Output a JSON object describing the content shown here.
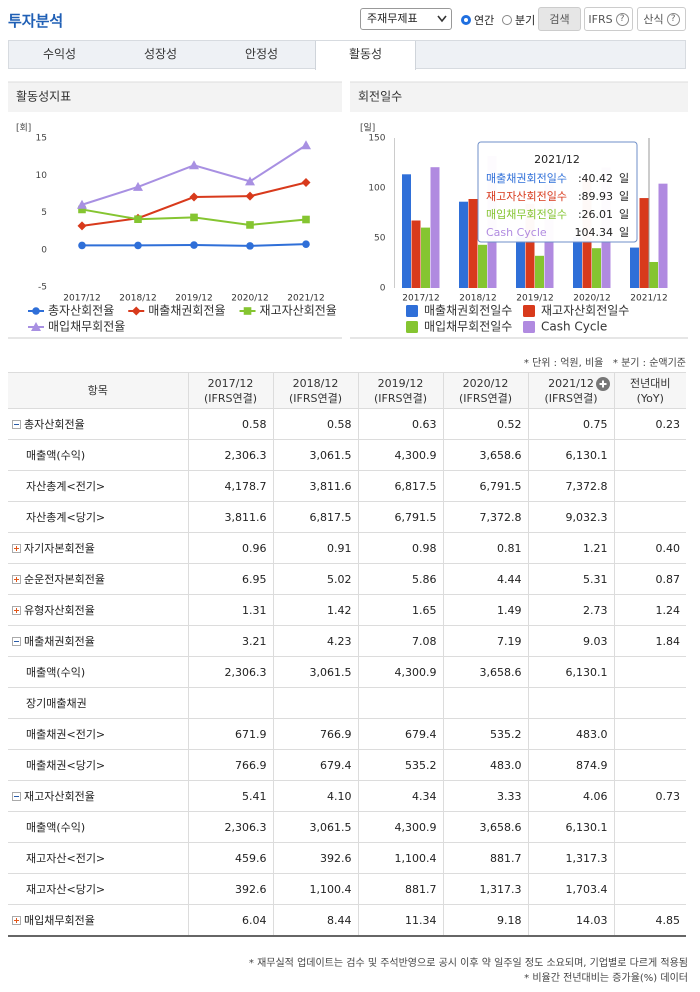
{
  "header": {
    "title": "투자분석",
    "select": "주재무제표",
    "radio": [
      "연간",
      "분기"
    ],
    "radio_checked": 0,
    "buttons": [
      "검색",
      "IFRS",
      "산식"
    ],
    "help_icon": "?"
  },
  "tabs": [
    "수익성",
    "성장성",
    "안정성",
    "활동성"
  ],
  "active_tab": 3,
  "chart_data": [
    {
      "type": "line",
      "title": "활동성지표",
      "y_unit": "[회]",
      "categories": [
        "2017/12",
        "2018/12",
        "2019/12",
        "2020/12",
        "2021/12"
      ],
      "series": [
        {
          "name": "총자산회전율",
          "color": "#2f6fd8",
          "marker": "circle",
          "values": [
            0.58,
            0.58,
            0.63,
            0.52,
            0.75
          ]
        },
        {
          "name": "매출채권회전율",
          "color": "#d83a1c",
          "marker": "diamond",
          "values": [
            3.21,
            4.23,
            7.08,
            7.19,
            9.03
          ]
        },
        {
          "name": "재고자산회전율",
          "color": "#85c531",
          "marker": "square",
          "values": [
            5.41,
            4.1,
            4.34,
            3.33,
            4.06
          ]
        },
        {
          "name": "매입채무회전율",
          "color": "#a890e2",
          "marker": "triangle",
          "values": [
            6.04,
            8.44,
            11.34,
            9.18,
            14.03
          ]
        }
      ],
      "ylim": [
        -5,
        15
      ],
      "yticks": [
        -5,
        0,
        5,
        10,
        15
      ],
      "grid": false
    },
    {
      "type": "bar",
      "title": "회전일수",
      "y_unit": "[일]",
      "categories": [
        "2017/12",
        "2018/12",
        "2019/12",
        "2020/12",
        "2021/12"
      ],
      "series": [
        {
          "name": "매출채권회전일수",
          "color": "#2f6fd8",
          "values": [
            113.7,
            86.3,
            51.6,
            50.8,
            40.42
          ]
        },
        {
          "name": "재고자산회전일수",
          "color": "#d83a1c",
          "values": [
            67.5,
            89.0,
            84.1,
            109.6,
            89.93
          ]
        },
        {
          "name": "매입채무회전일수",
          "color": "#85c531",
          "values": [
            60.4,
            43.2,
            32.2,
            39.8,
            26.01
          ]
        },
        {
          "name": "Cash Cycle",
          "color": "#b08ae0",
          "values": [
            120.8,
            132.1,
            103.5,
            120.6,
            104.34
          ]
        }
      ],
      "ylim": [
        0,
        150
      ],
      "yticks": [
        0,
        50,
        100,
        150
      ],
      "grid": false,
      "tooltip_separator": ":",
      "tooltip_unit": "일"
    }
  ],
  "note": "* 단위 : 억원, 비율   * 분기 : 순액기준",
  "table": {
    "columns": [
      {
        "label": "항목"
      },
      {
        "label": "2017/12",
        "sub": "(IFRS연결)"
      },
      {
        "label": "2018/12",
        "sub": "(IFRS연결)"
      },
      {
        "label": "2019/12",
        "sub": "(IFRS연결)"
      },
      {
        "label": "2020/12",
        "sub": "(IFRS연결)"
      },
      {
        "label": "2021/12",
        "sub": "(IFRS연결)"
      },
      {
        "label": "전년대비",
        "sub": "(YoY)"
      }
    ],
    "rows": [
      {
        "label": "총자산회전율",
        "icon": "minus",
        "cells": [
          "0.58",
          "0.58",
          "0.63",
          "0.52",
          "0.75",
          "0.23"
        ]
      },
      {
        "label": "매출액(수익)",
        "cells": [
          "2,306.3",
          "3,061.5",
          "4,300.9",
          "3,658.6",
          "6,130.1",
          null
        ]
      },
      {
        "label": "자산총계<전기>",
        "cells": [
          "4,178.7",
          "3,811.6",
          "6,817.5",
          "6,791.5",
          "7,372.8",
          null
        ]
      },
      {
        "label": "자산총계<당기>",
        "cells": [
          "3,811.6",
          "6,817.5",
          "6,791.5",
          "7,372.8",
          "9,032.3",
          null
        ]
      },
      {
        "label": "자기자본회전율",
        "icon": "plus",
        "cells": [
          "0.96",
          "0.91",
          "0.98",
          "0.81",
          "1.21",
          "0.40"
        ]
      },
      {
        "label": "순운전자본회전율",
        "icon": "plus",
        "cells": [
          "6.95",
          "5.02",
          "5.86",
          "4.44",
          "5.31",
          "0.87"
        ]
      },
      {
        "label": "유형자산회전율",
        "icon": "plus",
        "cells": [
          "1.31",
          "1.42",
          "1.65",
          "1.49",
          "2.73",
          "1.24"
        ]
      },
      {
        "label": "매출채권회전율",
        "icon": "minus",
        "cells": [
          "3.21",
          "4.23",
          "7.08",
          "7.19",
          "9.03",
          "1.84"
        ]
      },
      {
        "label": "매출액(수익)",
        "cells": [
          "2,306.3",
          "3,061.5",
          "4,300.9",
          "3,658.6",
          "6,130.1",
          null
        ]
      },
      {
        "label": "장기매출채권",
        "cells": [
          null,
          null,
          null,
          null,
          null,
          null
        ]
      },
      {
        "label": "매출채권<전기>",
        "cells": [
          "671.9",
          "766.9",
          "679.4",
          "535.2",
          "483.0",
          null
        ]
      },
      {
        "label": "매출채권<당기>",
        "cells": [
          "766.9",
          "679.4",
          "535.2",
          "483.0",
          "874.9",
          null
        ]
      },
      {
        "label": "재고자산회전율",
        "icon": "minus",
        "cells": [
          "5.41",
          "4.10",
          "4.34",
          "3.33",
          "4.06",
          "0.73"
        ]
      },
      {
        "label": "매출액(수익)",
        "cells": [
          "2,306.3",
          "3,061.5",
          "4,300.9",
          "3,658.6",
          "6,130.1",
          null
        ]
      },
      {
        "label": "재고자산<전기>",
        "cells": [
          "459.6",
          "392.6",
          "1,100.4",
          "881.7",
          "1,317.3",
          null
        ]
      },
      {
        "label": "재고자산<당기>",
        "cells": [
          "392.6",
          "1,100.4",
          "881.7",
          "1,317.3",
          "1,703.4",
          null
        ]
      },
      {
        "label": "매입채무회전율",
        "icon": "plus",
        "cells": [
          "6.04",
          "8.44",
          "11.34",
          "9.18",
          "14.03",
          "4.85"
        ]
      }
    ]
  },
  "footnotes": [
    "* 재무실적 업데이트는 검수 및 주석반영으로 공시 이후 약 일주일 정도 소요되며, 기업별로 다르게 적용됨",
    "* 비율간 전년대비는 증가율(%) 데이터"
  ]
}
